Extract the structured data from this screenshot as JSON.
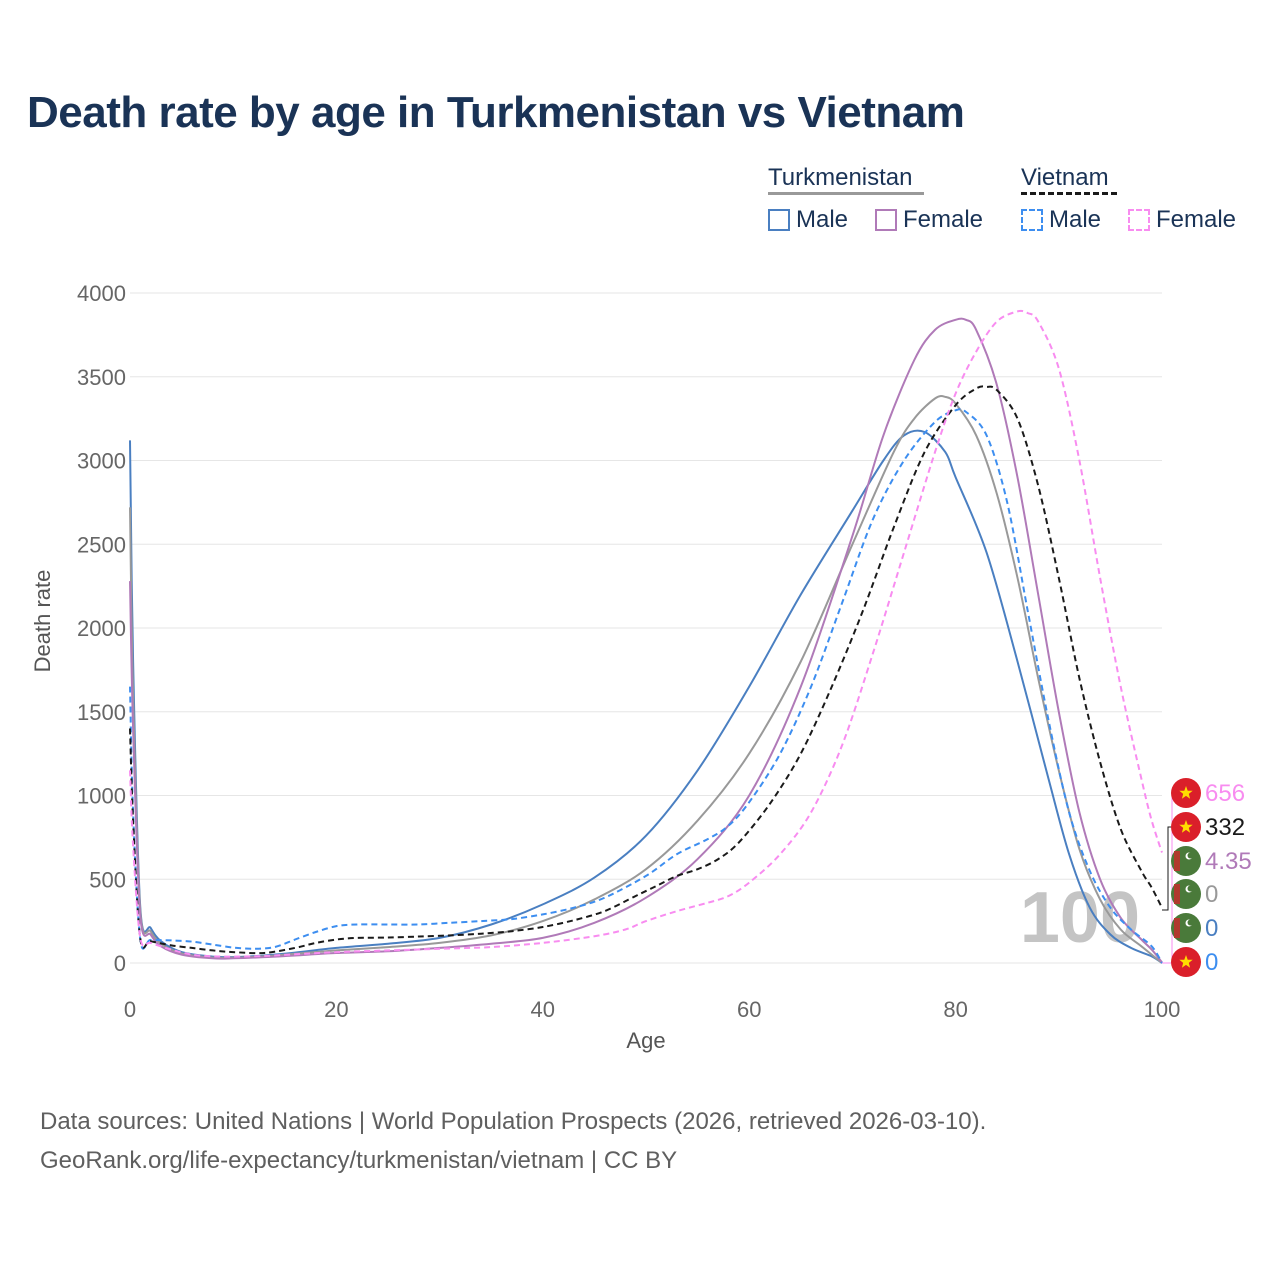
{
  "title": "Death rate by age in Turkmenistan vs Vietnam",
  "legend": {
    "countries": [
      {
        "name": "Turkmenistan",
        "line_color": "#999999",
        "dashed": false
      },
      {
        "name": "Vietnam",
        "line_color": "#1a1a1a",
        "dashed": true
      }
    ],
    "items": [
      {
        "label": "Male",
        "color": "#4a7fc1",
        "dashed": false
      },
      {
        "label": "Female",
        "color": "#b07ab8",
        "dashed": false
      },
      {
        "label": "Male",
        "color": "#3d8ef0",
        "dashed": true
      },
      {
        "label": "Female",
        "color": "#f88cf0",
        "dashed": true
      }
    ]
  },
  "year_watermark": "100",
  "source_lines": [
    "Data sources: United Nations | World Population Prospects (2026, retrieved 2026-03-10).",
    "GeoRank.org/life-expectancy/turkmenistan/vietnam | CC BY"
  ],
  "chart_data": {
    "type": "line",
    "title": "Death rate by age in Turkmenistan vs Vietnam",
    "xlabel": "Age",
    "ylabel": "Death rate",
    "xlim": [
      0,
      100
    ],
    "ylim": [
      0,
      4000
    ],
    "xticks": [
      0,
      20,
      40,
      60,
      80,
      100
    ],
    "yticks": [
      0,
      500,
      1000,
      1500,
      2000,
      2500,
      3000,
      3500,
      4000
    ],
    "grid": true,
    "series": [
      {
        "name": "Turkmenistan Male",
        "color": "#4a7fc1",
        "dashed": false,
        "points": [
          [
            0,
            3120
          ],
          [
            0.3,
            1800
          ],
          [
            1,
            330
          ],
          [
            2,
            210
          ],
          [
            3,
            130
          ],
          [
            5,
            65
          ],
          [
            8,
            38
          ],
          [
            10,
            35
          ],
          [
            13,
            45
          ],
          [
            16,
            62
          ],
          [
            20,
            90
          ],
          [
            25,
            115
          ],
          [
            30,
            150
          ],
          [
            35,
            230
          ],
          [
            40,
            350
          ],
          [
            45,
            510
          ],
          [
            50,
            760
          ],
          [
            55,
            1150
          ],
          [
            60,
            1650
          ],
          [
            65,
            2200
          ],
          [
            70,
            2700
          ],
          [
            73,
            3000
          ],
          [
            75,
            3150
          ],
          [
            77,
            3170
          ],
          [
            79,
            3050
          ],
          [
            80,
            2900
          ],
          [
            83,
            2450
          ],
          [
            86,
            1800
          ],
          [
            89,
            1100
          ],
          [
            91,
            650
          ],
          [
            93,
            330
          ],
          [
            95,
            170
          ],
          [
            97,
            90
          ],
          [
            99,
            40
          ],
          [
            100,
            0
          ]
        ]
      },
      {
        "name": "Turkmenistan Female",
        "color": "#b07ab8",
        "dashed": false,
        "points": [
          [
            0,
            2280
          ],
          [
            0.3,
            1400
          ],
          [
            1,
            280
          ],
          [
            2,
            170
          ],
          [
            3,
            100
          ],
          [
            5,
            50
          ],
          [
            8,
            28
          ],
          [
            10,
            28
          ],
          [
            13,
            35
          ],
          [
            16,
            45
          ],
          [
            20,
            60
          ],
          [
            25,
            70
          ],
          [
            30,
            90
          ],
          [
            35,
            115
          ],
          [
            40,
            150
          ],
          [
            45,
            240
          ],
          [
            50,
            390
          ],
          [
            55,
            620
          ],
          [
            60,
            1000
          ],
          [
            65,
            1650
          ],
          [
            70,
            2550
          ],
          [
            73,
            3150
          ],
          [
            76,
            3600
          ],
          [
            78,
            3780
          ],
          [
            80,
            3840
          ],
          [
            81,
            3840
          ],
          [
            82,
            3780
          ],
          [
            84,
            3450
          ],
          [
            86,
            2900
          ],
          [
            88,
            2200
          ],
          [
            90,
            1500
          ],
          [
            92,
            900
          ],
          [
            94,
            500
          ],
          [
            96,
            270
          ],
          [
            98,
            140
          ],
          [
            99,
            80
          ],
          [
            100,
            4
          ]
        ]
      },
      {
        "name": "Turkmenistan Total",
        "color": "#999999",
        "dashed": false,
        "points": [
          [
            0,
            2720
          ],
          [
            0.3,
            1600
          ],
          [
            1,
            310
          ],
          [
            2,
            190
          ],
          [
            3,
            115
          ],
          [
            5,
            58
          ],
          [
            8,
            33
          ],
          [
            10,
            32
          ],
          [
            13,
            40
          ],
          [
            16,
            55
          ],
          [
            20,
            75
          ],
          [
            25,
            95
          ],
          [
            30,
            120
          ],
          [
            35,
            165
          ],
          [
            40,
            250
          ],
          [
            45,
            380
          ],
          [
            50,
            560
          ],
          [
            55,
            850
          ],
          [
            60,
            1250
          ],
          [
            65,
            1800
          ],
          [
            70,
            2500
          ],
          [
            74,
            3050
          ],
          [
            76,
            3250
          ],
          [
            78,
            3370
          ],
          [
            79,
            3380
          ],
          [
            80,
            3340
          ],
          [
            82,
            3150
          ],
          [
            84,
            2800
          ],
          [
            86,
            2300
          ],
          [
            88,
            1700
          ],
          [
            90,
            1150
          ],
          [
            92,
            680
          ],
          [
            94,
            380
          ],
          [
            96,
            200
          ],
          [
            98,
            100
          ],
          [
            100,
            0
          ]
        ]
      },
      {
        "name": "Vietnam Male",
        "color": "#3d8ef0",
        "dashed": true,
        "points": [
          [
            0,
            1650
          ],
          [
            0.3,
            900
          ],
          [
            1,
            140
          ],
          [
            2,
            138
          ],
          [
            4,
            135
          ],
          [
            6,
            128
          ],
          [
            8,
            110
          ],
          [
            10,
            92
          ],
          [
            12,
            85
          ],
          [
            14,
            95
          ],
          [
            16,
            140
          ],
          [
            18,
            185
          ],
          [
            20,
            220
          ],
          [
            22,
            230
          ],
          [
            25,
            230
          ],
          [
            28,
            230
          ],
          [
            31,
            240
          ],
          [
            34,
            250
          ],
          [
            37,
            262
          ],
          [
            40,
            290
          ],
          [
            43,
            330
          ],
          [
            46,
            390
          ],
          [
            50,
            520
          ],
          [
            53,
            650
          ],
          [
            56,
            740
          ],
          [
            58,
            820
          ],
          [
            60,
            960
          ],
          [
            63,
            1250
          ],
          [
            66,
            1650
          ],
          [
            69,
            2150
          ],
          [
            72,
            2650
          ],
          [
            75,
            3000
          ],
          [
            78,
            3230
          ],
          [
            80,
            3300
          ],
          [
            81,
            3290
          ],
          [
            83,
            3150
          ],
          [
            85,
            2750
          ],
          [
            87,
            2100
          ],
          [
            89,
            1450
          ],
          [
            91,
            900
          ],
          [
            93,
            550
          ],
          [
            95,
            330
          ],
          [
            97,
            200
          ],
          [
            99,
            100
          ],
          [
            100,
            0
          ]
        ]
      },
      {
        "name": "Vietnam Female",
        "color": "#f88cf0",
        "dashed": true,
        "points": [
          [
            0,
            1150
          ],
          [
            0.3,
            700
          ],
          [
            1,
            150
          ],
          [
            2,
            120
          ],
          [
            4,
            80
          ],
          [
            6,
            50
          ],
          [
            8,
            40
          ],
          [
            10,
            38
          ],
          [
            13,
            42
          ],
          [
            16,
            52
          ],
          [
            20,
            65
          ],
          [
            25,
            75
          ],
          [
            30,
            85
          ],
          [
            35,
            95
          ],
          [
            40,
            120
          ],
          [
            45,
            160
          ],
          [
            48,
            200
          ],
          [
            50,
            250
          ],
          [
            53,
            310
          ],
          [
            56,
            360
          ],
          [
            58,
            400
          ],
          [
            60,
            480
          ],
          [
            63,
            650
          ],
          [
            66,
            900
          ],
          [
            69,
            1300
          ],
          [
            72,
            1850
          ],
          [
            75,
            2450
          ],
          [
            78,
            3050
          ],
          [
            80,
            3400
          ],
          [
            82,
            3650
          ],
          [
            84,
            3830
          ],
          [
            86,
            3890
          ],
          [
            87,
            3880
          ],
          [
            88,
            3830
          ],
          [
            90,
            3550
          ],
          [
            92,
            3000
          ],
          [
            94,
            2300
          ],
          [
            96,
            1650
          ],
          [
            98,
            1100
          ],
          [
            99,
            850
          ],
          [
            100,
            660
          ]
        ]
      },
      {
        "name": "Vietnam Total",
        "color": "#1a1a1a",
        "dashed": true,
        "points": [
          [
            0,
            1400
          ],
          [
            0.3,
            850
          ],
          [
            1,
            145
          ],
          [
            2,
            130
          ],
          [
            4,
            105
          ],
          [
            6,
            90
          ],
          [
            8,
            75
          ],
          [
            10,
            65
          ],
          [
            13,
            60
          ],
          [
            16,
            90
          ],
          [
            18,
            120
          ],
          [
            20,
            140
          ],
          [
            22,
            150
          ],
          [
            25,
            152
          ],
          [
            28,
            158
          ],
          [
            31,
            165
          ],
          [
            34,
            175
          ],
          [
            37,
            190
          ],
          [
            40,
            215
          ],
          [
            43,
            255
          ],
          [
            46,
            310
          ],
          [
            49,
            400
          ],
          [
            51,
            460
          ],
          [
            53,
            520
          ],
          [
            55,
            560
          ],
          [
            57,
            620
          ],
          [
            59,
            720
          ],
          [
            62,
            950
          ],
          [
            65,
            1250
          ],
          [
            68,
            1650
          ],
          [
            71,
            2100
          ],
          [
            74,
            2600
          ],
          [
            77,
            3050
          ],
          [
            80,
            3330
          ],
          [
            82,
            3430
          ],
          [
            83,
            3440
          ],
          [
            84,
            3420
          ],
          [
            86,
            3250
          ],
          [
            88,
            2850
          ],
          [
            90,
            2300
          ],
          [
            92,
            1700
          ],
          [
            94,
            1200
          ],
          [
            96,
            800
          ],
          [
            98,
            550
          ],
          [
            99,
            450
          ],
          [
            100,
            330
          ]
        ]
      }
    ],
    "end_labels": [
      {
        "value": "656",
        "color": "#f88cf0",
        "flag": "vietnam"
      },
      {
        "value": "332",
        "color": "#1a1a1a",
        "flag": "vietnam"
      },
      {
        "value": "4.35",
        "color": "#b07ab8",
        "flag": "turkmenistan"
      },
      {
        "value": "0",
        "color": "#999999",
        "flag": "turkmenistan"
      },
      {
        "value": "0",
        "color": "#4a7fc1",
        "flag": "turkmenistan"
      },
      {
        "value": "0",
        "color": "#3d8ef0",
        "flag": "vietnam"
      }
    ]
  }
}
